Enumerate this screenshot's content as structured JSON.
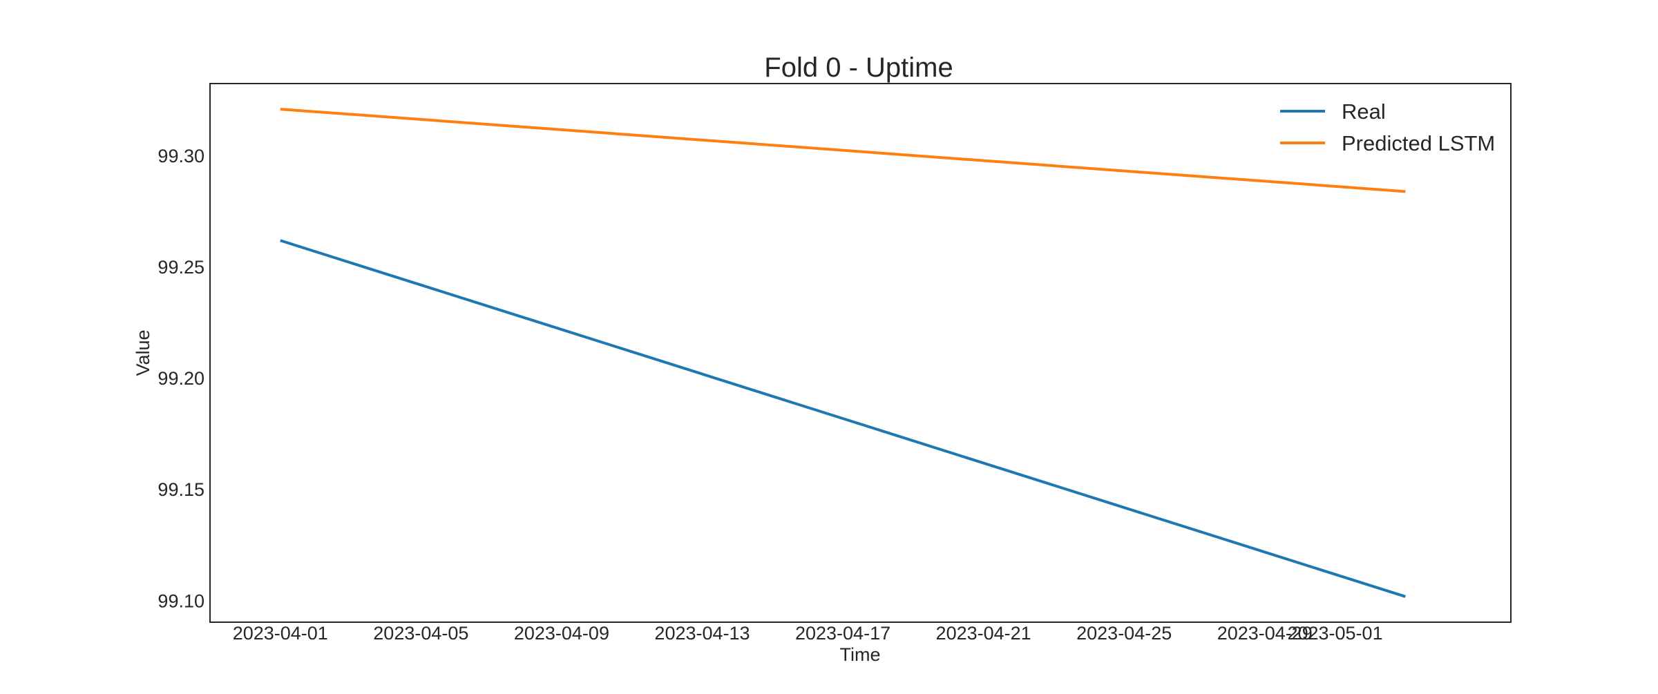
{
  "chart_data": {
    "type": "line",
    "title": "Fold 0 - Uptime",
    "xlabel": "Time",
    "ylabel": "Value",
    "x_type": "date",
    "xlim": [
      "2023-03-30",
      "2023-05-06"
    ],
    "ylim": [
      99.0905,
      99.3325
    ],
    "xticks": [
      {
        "value": "2023-04-01",
        "label": "2023-04-01"
      },
      {
        "value": "2023-04-05",
        "label": "2023-04-05"
      },
      {
        "value": "2023-04-09",
        "label": "2023-04-09"
      },
      {
        "value": "2023-04-13",
        "label": "2023-04-13"
      },
      {
        "value": "2023-04-17",
        "label": "2023-04-17"
      },
      {
        "value": "2023-04-21",
        "label": "2023-04-21"
      },
      {
        "value": "2023-04-25",
        "label": "2023-04-25"
      },
      {
        "value": "2023-04-29",
        "label": "2023-04-29"
      },
      {
        "value": "2023-05-01",
        "label": "2023-05-01"
      }
    ],
    "yticks": [
      {
        "value": 99.1,
        "label": "99.10"
      },
      {
        "value": 99.15,
        "label": "99.15"
      },
      {
        "value": 99.2,
        "label": "99.20"
      },
      {
        "value": 99.25,
        "label": "99.25"
      },
      {
        "value": 99.3,
        "label": "99.30"
      }
    ],
    "grid": false,
    "legend_position": "top-right",
    "series": [
      {
        "name": "Real",
        "color": "#1f77b4",
        "points": [
          {
            "x": "2023-04-01",
            "y": 99.262
          },
          {
            "x": "2023-05-03",
            "y": 99.102
          }
        ]
      },
      {
        "name": "Predicted LSTM",
        "color": "#ff7f0e",
        "points": [
          {
            "x": "2023-04-01",
            "y": 99.321
          },
          {
            "x": "2023-05-03",
            "y": 99.284
          }
        ]
      }
    ]
  }
}
